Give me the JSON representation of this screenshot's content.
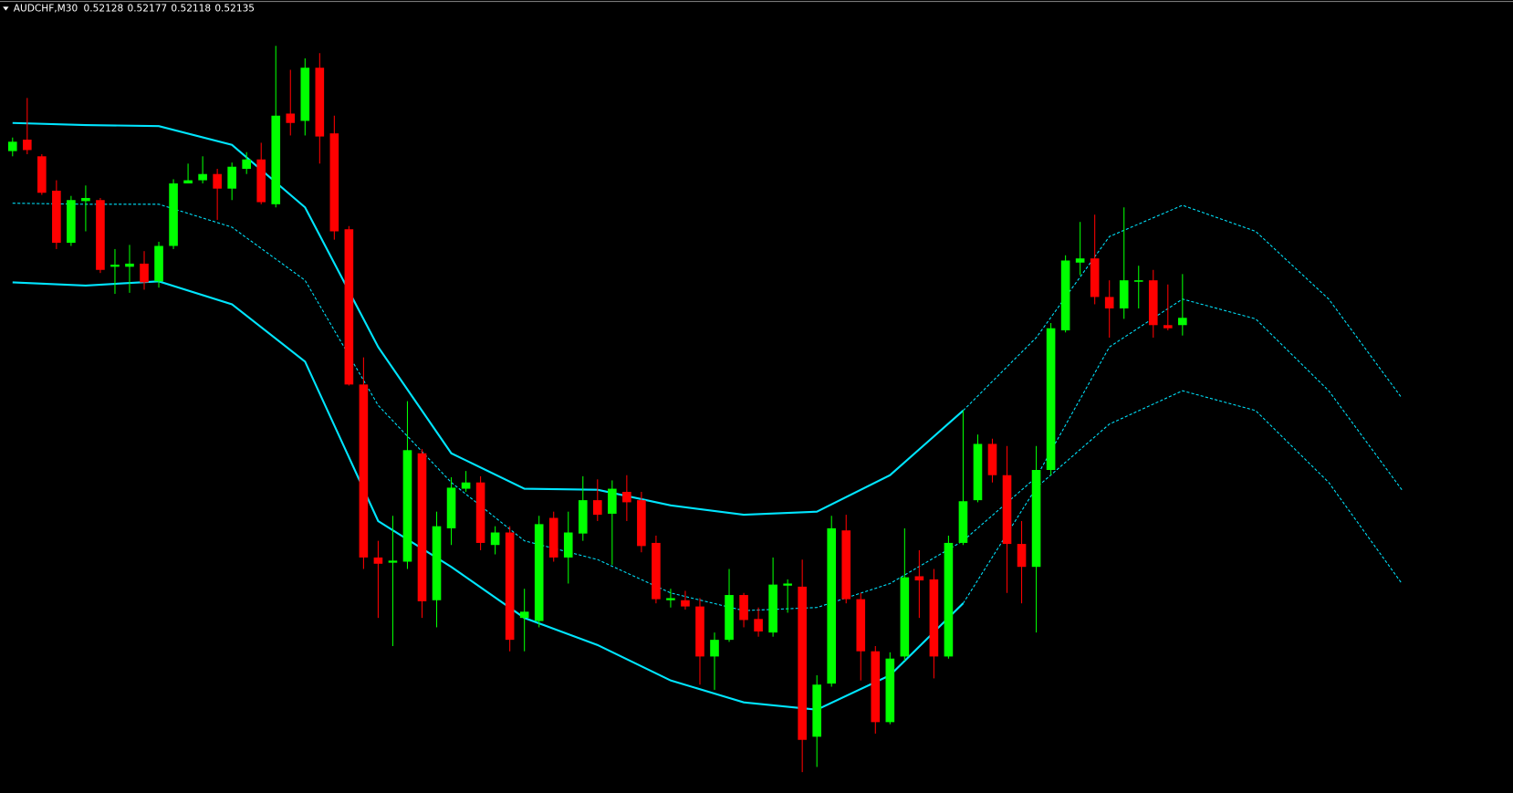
{
  "chart_data": {
    "type": "candlestick",
    "symbol": "AUDCHF,M30",
    "background": "#000000",
    "up_color": "#00ff00",
    "down_color": "#ff0000",
    "xlim": [
      -0.86,
      102.6
    ],
    "ylim": [
      0.51679,
      0.5244
    ],
    "open": [
      0.52295,
      0.52306,
      0.5229,
      0.52257,
      0.52207,
      0.52247,
      0.52248,
      0.52184,
      0.52184,
      0.52187,
      0.5217,
      0.52204,
      0.52264,
      0.52267,
      0.52273,
      0.52259,
      0.52278,
      0.52287,
      0.52244,
      0.52331,
      0.52324,
      0.52375,
      0.52312,
      0.5222,
      0.52071,
      0.51905,
      0.519,
      0.51901,
      0.52005,
      0.51864,
      0.51933,
      0.51971,
      0.51977,
      0.51917,
      0.51929,
      0.51847,
      0.51844,
      0.51943,
      0.51905,
      0.51928,
      0.5196,
      0.51947,
      0.51968,
      0.5196,
      0.51919,
      0.51864,
      0.51864,
      0.51858,
      0.5181,
      0.51826,
      0.51869,
      0.51846,
      0.51833,
      0.51878,
      0.51877,
      0.51733,
      0.51784,
      0.51931,
      0.51865,
      0.51815,
      0.51747,
      0.5181,
      0.51887,
      0.51884,
      0.5181,
      0.51919,
      0.5196,
      0.52014,
      0.51984,
      0.51918,
      0.51896,
      0.51989,
      0.52123,
      0.52188,
      0.52192,
      0.52155,
      0.52144,
      0.5217,
      0.52171,
      0.52128,
      0.52128
    ],
    "high": [
      0.52308,
      0.52346,
      0.52292,
      0.52267,
      0.52252,
      0.52262,
      0.5225,
      0.52201,
      0.52205,
      0.52199,
      0.52208,
      0.52268,
      0.52283,
      0.5229,
      0.52278,
      0.52284,
      0.52294,
      0.52303,
      0.52396,
      0.52373,
      0.52384,
      0.52389,
      0.52329,
      0.52223,
      0.52097,
      0.51921,
      0.51945,
      0.52055,
      0.52009,
      0.51949,
      0.51982,
      0.51988,
      0.51983,
      0.51935,
      0.51935,
      0.51875,
      0.51945,
      0.51949,
      0.51949,
      0.51983,
      0.5198,
      0.51979,
      0.51984,
      0.51968,
      0.51926,
      0.51875,
      0.51873,
      0.51866,
      0.51833,
      0.51894,
      0.51871,
      0.51857,
      0.51905,
      0.51884,
      0.51903,
      0.51792,
      0.51945,
      0.51946,
      0.51871,
      0.5182,
      0.51814,
      0.51933,
      0.51912,
      0.51894,
      0.51926,
      0.52046,
      0.52023,
      0.52019,
      0.52012,
      0.5194,
      0.52012,
      0.5213,
      0.52195,
      0.52227,
      0.52234,
      0.52171,
      0.52241,
      0.52185,
      0.52181,
      0.52167,
      0.52177
    ],
    "low": [
      0.5229,
      0.52292,
      0.52253,
      0.52201,
      0.52204,
      0.52218,
      0.52178,
      0.52158,
      0.52159,
      0.52162,
      0.52164,
      0.52201,
      0.52264,
      0.52264,
      0.52229,
      0.52248,
      0.52273,
      0.52244,
      0.52241,
      0.5231,
      0.5231,
      0.52283,
      0.5221,
      0.5207,
      0.51894,
      0.51847,
      0.5182,
      0.51894,
      0.51847,
      0.51838,
      0.51917,
      0.51968,
      0.51912,
      0.51908,
      0.51815,
      0.51815,
      0.51838,
      0.51901,
      0.5188,
      0.51921,
      0.5194,
      0.51898,
      0.5194,
      0.5191,
      0.51861,
      0.51857,
      0.51855,
      0.51783,
      0.51778,
      0.51824,
      0.51838,
      0.51829,
      0.51829,
      0.51852,
      0.51699,
      0.51704,
      0.51781,
      0.51861,
      0.51787,
      0.51736,
      0.51745,
      0.51806,
      0.51847,
      0.51789,
      0.51808,
      0.51917,
      0.51958,
      0.51977,
      0.51871,
      0.51861,
      0.51833,
      0.51984,
      0.52121,
      0.52176,
      0.52148,
      0.52116,
      0.52134,
      0.52144,
      0.52116,
      0.52123,
      0.52118
    ],
    "close": [
      0.52304,
      0.52296,
      0.52255,
      0.52207,
      0.52248,
      0.5225,
      0.52181,
      0.52186,
      0.52187,
      0.52169,
      0.52204,
      0.52264,
      0.52267,
      0.52273,
      0.52259,
      0.5228,
      0.52287,
      0.52246,
      0.52329,
      0.52322,
      0.52375,
      0.52309,
      0.52218,
      0.52071,
      0.51905,
      0.51899,
      0.51902,
      0.52008,
      0.51863,
      0.51935,
      0.51972,
      0.51977,
      0.51919,
      0.51929,
      0.51826,
      0.51853,
      0.51937,
      0.51905,
      0.51929,
      0.5196,
      0.51946,
      0.51971,
      0.51958,
      0.51916,
      0.51865,
      0.51866,
      0.51858,
      0.5181,
      0.51826,
      0.51869,
      0.51845,
      0.51834,
      0.51879,
      0.5188,
      0.5173,
      0.51783,
      0.51933,
      0.51865,
      0.51815,
      0.51747,
      0.51808,
      0.51886,
      0.51883,
      0.5181,
      0.51919,
      0.51959,
      0.52014,
      0.51984,
      0.51918,
      0.51896,
      0.51989,
      0.52125,
      0.5219,
      0.52192,
      0.52155,
      0.52144,
      0.52171,
      0.52171,
      0.52128,
      0.52125,
      0.52135
    ],
    "bands": [
      {
        "color": "#00e5ff",
        "dashed": false,
        "x": [
          0,
          5,
          10,
          15,
          20,
          25,
          30,
          35,
          40,
          45,
          50,
          55,
          60,
          65
        ],
        "values": [
          0.52322,
          0.5232,
          0.52319,
          0.52301,
          0.52241,
          0.52107,
          0.52005,
          0.51971,
          0.5197,
          0.51955,
          0.51946,
          0.51949,
          0.51984,
          0.52046
        ]
      },
      {
        "color": "#00e5ff",
        "dashed": true,
        "x": [
          65,
          70,
          75,
          80,
          85,
          90,
          95
        ],
        "values": [
          0.52046,
          0.52116,
          0.52213,
          0.52243,
          0.52218,
          0.52153,
          0.52058
        ]
      },
      {
        "color": "#00e5ff",
        "dashed": true,
        "x": [
          0,
          5,
          10,
          15,
          20,
          25,
          30,
          35,
          40,
          45,
          50,
          55,
          60,
          65,
          70,
          75,
          80,
          85,
          90,
          95
        ],
        "values": [
          0.52245,
          0.52244,
          0.52244,
          0.52222,
          0.52171,
          0.52051,
          0.51977,
          0.51921,
          0.51903,
          0.51871,
          0.51854,
          0.51857,
          0.5188,
          0.51921,
          0.51982,
          0.52107,
          0.52153,
          0.52134,
          0.52065,
          0.5197
        ]
      },
      {
        "color": "#00e5ff",
        "dashed": false,
        "x": [
          0,
          5,
          10,
          15,
          20,
          25,
          30,
          35,
          40,
          45,
          50,
          55,
          60,
          65
        ],
        "values": [
          0.52169,
          0.52166,
          0.5217,
          0.52148,
          0.52093,
          0.5194,
          0.51896,
          0.51847,
          0.51821,
          0.51787,
          0.51766,
          0.51759,
          0.51792,
          0.51861
        ]
      },
      {
        "color": "#00e5ff",
        "dashed": true,
        "x": [
          65,
          70,
          75,
          80,
          85,
          90,
          95
        ],
        "values": [
          0.51861,
          0.51972,
          0.52033,
          0.52065,
          0.52046,
          0.51977,
          0.5188
        ]
      }
    ]
  }
}
